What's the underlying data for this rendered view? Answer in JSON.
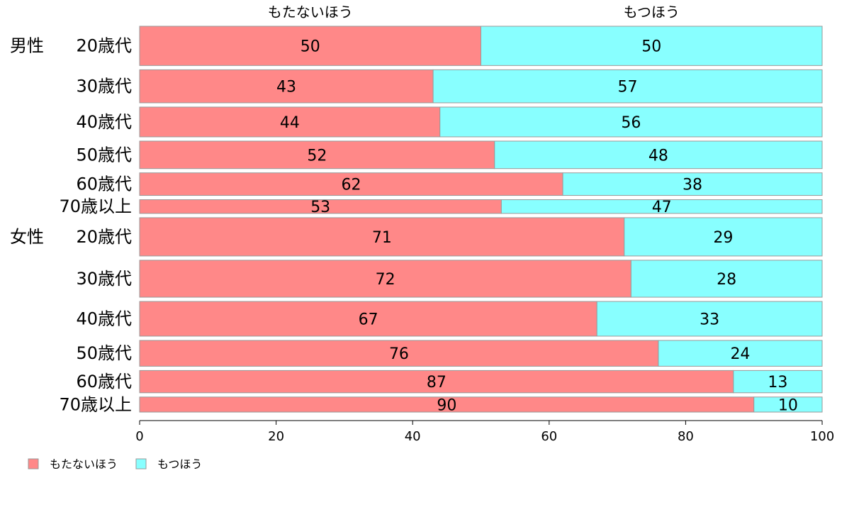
{
  "chart_data": {
    "type": "bar",
    "orientation": "horizontal",
    "stacked": true,
    "groups": [
      {
        "label": "男性",
        "first_index": 0
      },
      {
        "label": "女性",
        "first_index": 6
      }
    ],
    "categories": [
      "20歳代",
      "30歳代",
      "40歳代",
      "50歳代",
      "60歳代",
      "70歳以上",
      "20歳代",
      "30歳代",
      "40歳代",
      "50歳代",
      "60歳代",
      "70歳以上"
    ],
    "bar_weights": [
      120,
      101,
      91,
      84,
      69,
      42,
      117,
      113,
      106,
      79,
      68,
      46
    ],
    "series": [
      {
        "name": "もたないほう",
        "color": "#ff8888",
        "values": [
          50,
          43,
          44,
          52,
          62,
          53,
          71,
          72,
          67,
          76,
          87,
          90
        ]
      },
      {
        "name": "もつほう",
        "color": "#88ffff",
        "values": [
          50,
          57,
          56,
          48,
          38,
          47,
          29,
          28,
          33,
          24,
          13,
          10
        ]
      }
    ],
    "xlim": [
      0,
      100
    ],
    "xticks": [
      0,
      20,
      40,
      60,
      80,
      100
    ],
    "legend_position": "bottom-left",
    "bar_border_color": "#999999"
  }
}
